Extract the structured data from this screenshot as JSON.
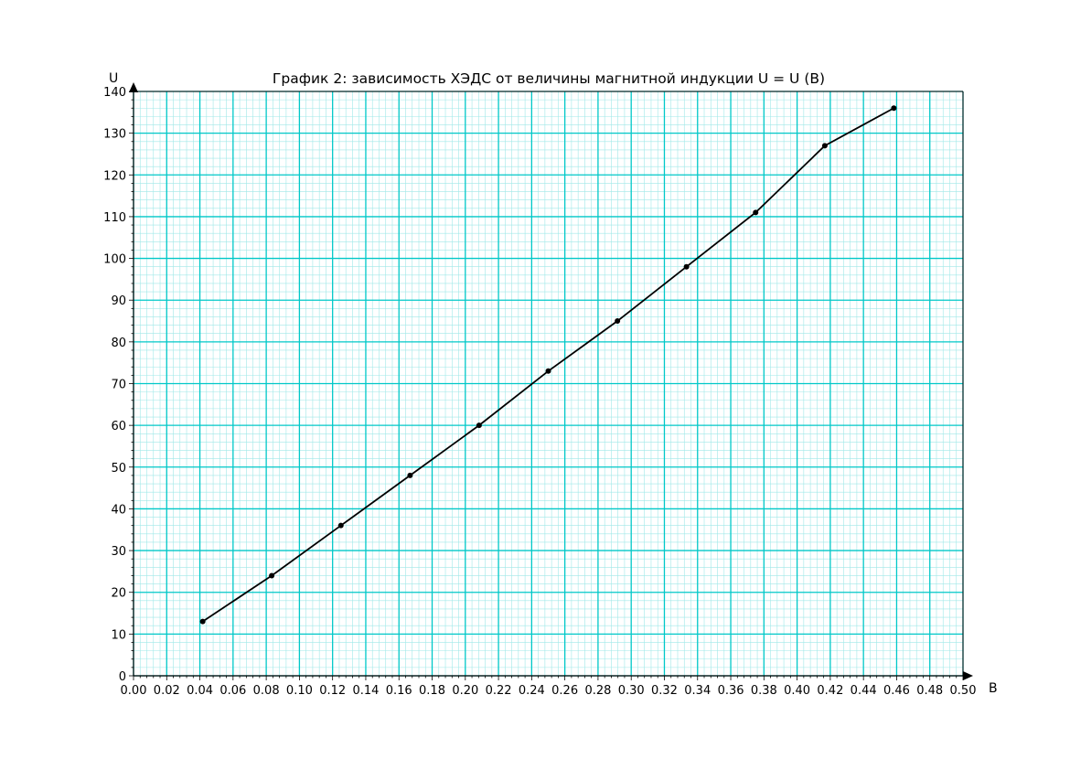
{
  "chart_data": {
    "type": "line",
    "title": "График 2: зависимость ХЭДС от величины магнитной индукции U  = U (B)",
    "xlabel": "B",
    "ylabel": "U",
    "xlim": [
      0,
      0.5
    ],
    "ylim": [
      0,
      140
    ],
    "x_ticks": [
      "0.00",
      "0.02",
      "0.04",
      "0.06",
      "0.08",
      "0.10",
      "0.12",
      "0.14",
      "0.16",
      "0.18",
      "0.20",
      "0.22",
      "0.24",
      "0.26",
      "0.28",
      "0.30",
      "0.32",
      "0.34",
      "0.36",
      "0.38",
      "0.40",
      "0.42",
      "0.44",
      "0.46",
      "0.48",
      "0.50"
    ],
    "y_ticks": [
      "0",
      "10",
      "20",
      "30",
      "40",
      "50",
      "60",
      "70",
      "80",
      "90",
      "100",
      "110",
      "120",
      "130",
      "140"
    ],
    "grid": "on",
    "series": [
      {
        "x": [
          0.0417,
          0.0833,
          0.125,
          0.1667,
          0.2083,
          0.25,
          0.2917,
          0.3333,
          0.375,
          0.4167,
          0.4583
        ],
        "y": [
          13,
          24,
          36,
          48,
          60,
          73,
          85,
          98,
          111,
          127,
          136
        ]
      }
    ],
    "colors": {
      "major_grid": "#00c8c8",
      "minor_grid": "#9fe8e8",
      "line": "#000000"
    }
  }
}
